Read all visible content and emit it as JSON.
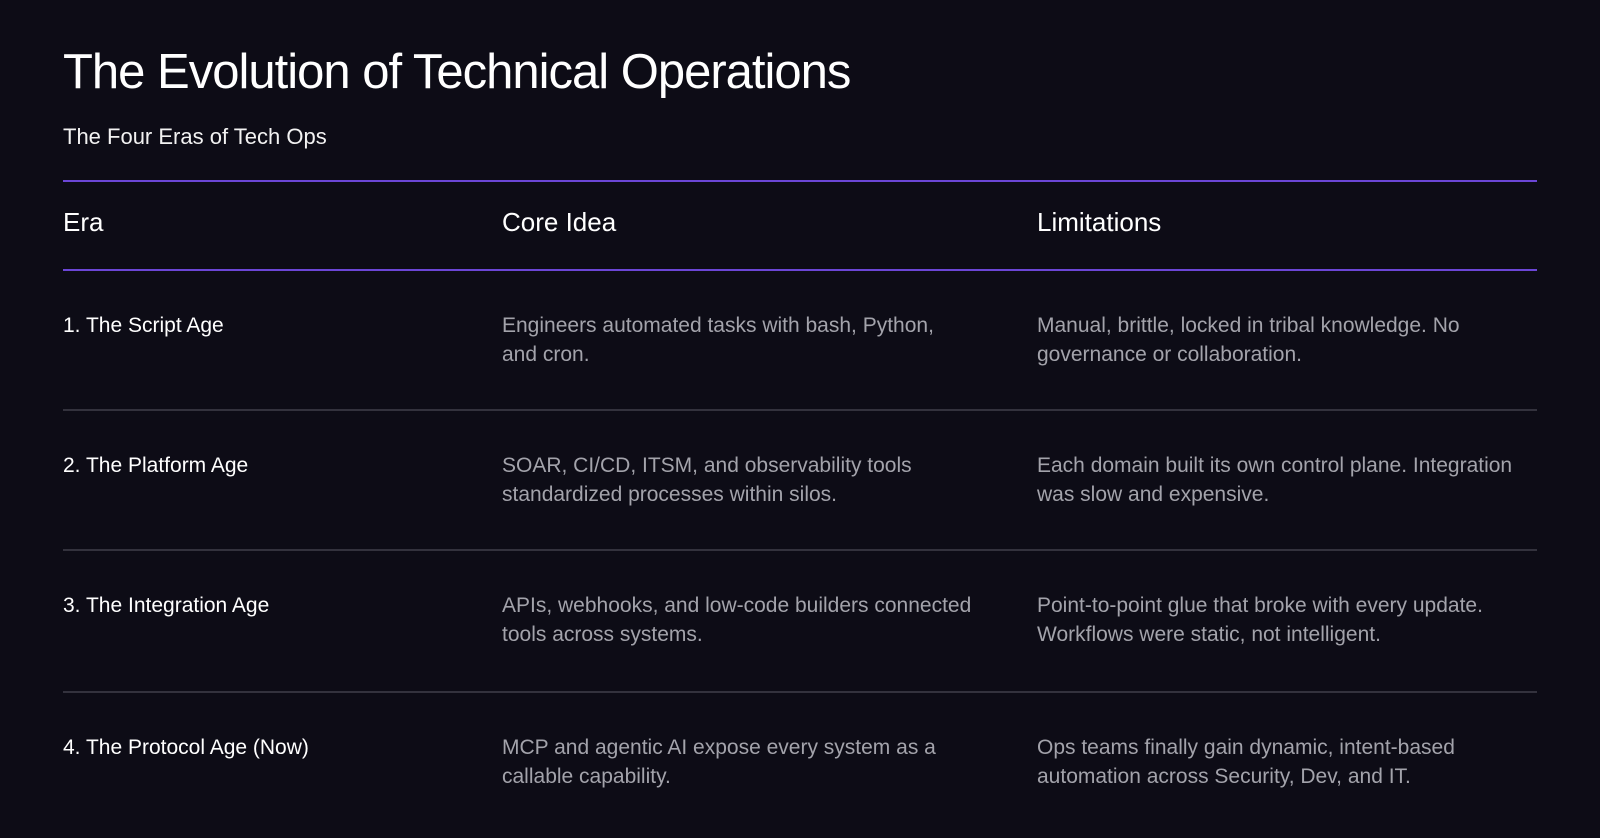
{
  "title": "The Evolution of Technical Operations",
  "subtitle": "The Four Eras of Tech Ops",
  "colors": {
    "background": "#0d0c16",
    "accent_rule": "#6b46d6",
    "row_divider": "#33323d",
    "primary_text": "#ffffff",
    "secondary_text": "#a3a3ab"
  },
  "table": {
    "headers": [
      "Era",
      "Core Idea",
      "Limitations"
    ],
    "rows": [
      {
        "era": "1. The Script Age",
        "core_idea": "Engineers automated tasks with bash, Python, and cron.",
        "limitations": "Manual, brittle, locked in tribal knowledge. No governance or collaboration."
      },
      {
        "era": "2. The Platform Age",
        "core_idea": "SOAR, CI/CD, ITSM, and observability tools standardized processes within silos.",
        "limitations": "Each domain built its own control plane. Integration was slow and expensive."
      },
      {
        "era": "3. The Integration Age",
        "core_idea": "APIs, webhooks, and low-code builders connected tools across systems.",
        "limitations": "Point-to-point glue that broke with every update. Workflows were static, not intelligent."
      },
      {
        "era": "4. The Protocol Age (Now)",
        "core_idea": "MCP and agentic AI expose every system as a callable capability.",
        "limitations": "Ops teams finally gain dynamic, intent-based automation across Security, Dev, and IT."
      }
    ]
  }
}
